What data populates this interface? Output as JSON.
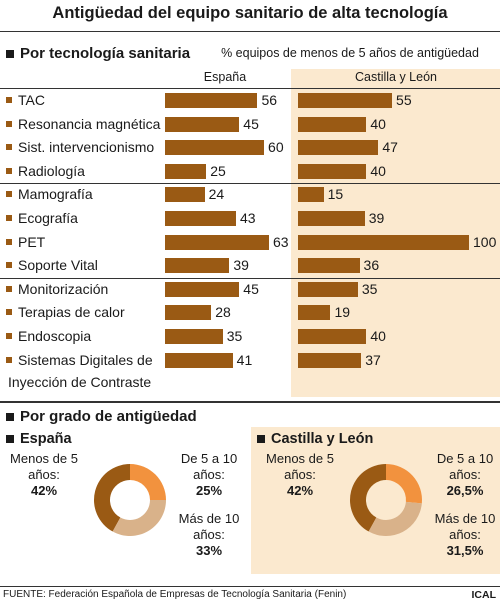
{
  "title": "Antigüedad del equipo sanitario de alta tecnología",
  "sections": {
    "tech": "Por tecnología sanitaria",
    "age": "Por grado de antigüedad"
  },
  "subtitle": "% equipos de menos de 5 años de antigüedad",
  "colors": {
    "bar": "#9a5a14",
    "panel": "#fbe9cf",
    "slice_new": "#9a5a14",
    "slice_mid": "#f2923e",
    "slice_old": "#d9b28a"
  },
  "chart_data": [
    {
      "type": "bar",
      "orientation": "horizontal",
      "title": "Por tecnología sanitaria",
      "subtitle": "% equipos de menos de 5 años de antigüedad",
      "categories": [
        "TAC",
        "Resonancia magnética",
        "Sist. intervencionismo",
        "Radiología",
        "Mamografía",
        "Ecografía",
        "PET",
        "Soporte Vital",
        "Monitorización",
        "Terapias de calor",
        "Endoscopia",
        "Sistemas Digitales de Inyección de Contraste"
      ],
      "series": [
        {
          "name": "España",
          "values": [
            56,
            45,
            60,
            25,
            24,
            43,
            63,
            39,
            45,
            28,
            35,
            41
          ]
        },
        {
          "name": "Castilla y León",
          "values": [
            55,
            40,
            47,
            40,
            15,
            39,
            100,
            36,
            35,
            19,
            40,
            37
          ]
        }
      ],
      "xlim": [
        0,
        100
      ]
    },
    {
      "type": "pie",
      "title": "España",
      "slices": [
        {
          "label": "Menos de 5 años:",
          "value": 42,
          "display": "42%"
        },
        {
          "label": "De 5 a 10 años:",
          "value": 25,
          "display": "25%"
        },
        {
          "label": "Más de 10 años:",
          "value": 33,
          "display": "33%"
        }
      ]
    },
    {
      "type": "pie",
      "title": "Castilla y León",
      "slices": [
        {
          "label": "Menos de 5 años:",
          "value": 42,
          "display": "42%"
        },
        {
          "label": "De 5 a 10 años:",
          "value": 26.5,
          "display": "26,5%"
        },
        {
          "label": "Más de 10 años:",
          "value": 31.5,
          "display": "31,5%"
        }
      ]
    }
  ],
  "source": "FUENTE: Federación Española de Empresas de Tecnología Sanitaria (Fenin)",
  "brand": "ICAL"
}
